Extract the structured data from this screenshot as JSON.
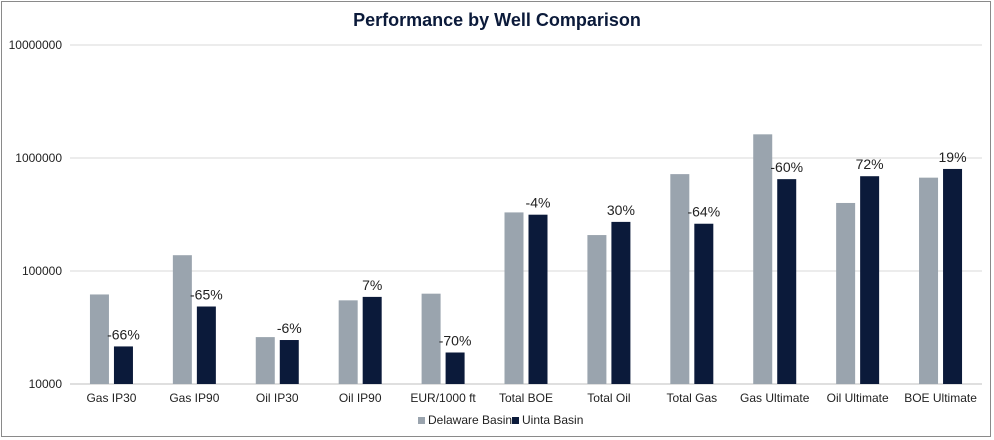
{
  "chart_data": {
    "type": "bar",
    "title": "Performance by Well Comparison",
    "y_scale": "log",
    "ylim": [
      10000,
      10000000
    ],
    "y_ticks": [
      "10000",
      "100000",
      "1000000",
      "10000000"
    ],
    "grid": true,
    "legend_position": "bottom-center",
    "categories": [
      "Gas IP30",
      "Gas IP90",
      "Oil IP30",
      "Oil IP90",
      "EUR/1000 ft",
      "Total BOE",
      "Total Oil",
      "Total Gas",
      "Gas Ultimate",
      "Oil Ultimate",
      "BOE Ultimate"
    ],
    "series": [
      {
        "name": "Delaware Basin",
        "color": "#9aa4ae",
        "values": [
          62000,
          138000,
          26000,
          55000,
          63000,
          330000,
          208000,
          720000,
          1620000,
          400000,
          670000
        ]
      },
      {
        "name": "Uinta Basin",
        "color": "#0b1a3a",
        "values": [
          21500,
          48500,
          24500,
          59000,
          19000,
          315000,
          272000,
          262000,
          650000,
          690000,
          800000
        ]
      }
    ],
    "data_labels": [
      "-66%",
      "-65%",
      "-6%",
      "7%",
      "-70%",
      "-4%",
      "30%",
      "-64%",
      "-60%",
      "72%",
      "19%"
    ]
  }
}
